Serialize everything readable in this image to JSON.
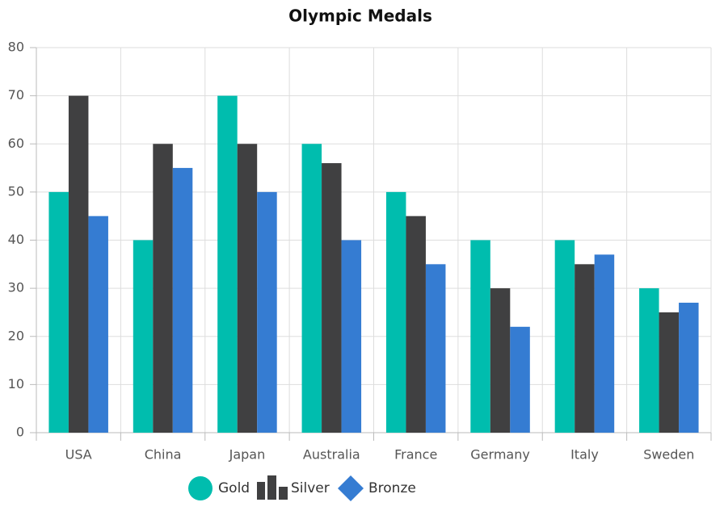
{
  "chart_data": {
    "type": "bar",
    "title": "Olympic Medals",
    "categories": [
      "USA",
      "China",
      "Japan",
      "Australia",
      "France",
      "Germany",
      "Italy",
      "Sweden"
    ],
    "series": [
      {
        "name": "Gold",
        "color": "#00bdae",
        "values": [
          50,
          40,
          70,
          60,
          50,
          40,
          40,
          30
        ]
      },
      {
        "name": "Silver",
        "color": "#404041",
        "values": [
          70,
          60,
          60,
          56,
          45,
          30,
          35,
          25
        ]
      },
      {
        "name": "Bronze",
        "color": "#357cd2",
        "values": [
          45,
          55,
          50,
          40,
          35,
          22,
          37,
          27
        ]
      }
    ],
    "ylim": [
      0,
      80
    ],
    "yticks": [
      0,
      10,
      20,
      30,
      40,
      50,
      60,
      70,
      80
    ],
    "grid": true
  }
}
